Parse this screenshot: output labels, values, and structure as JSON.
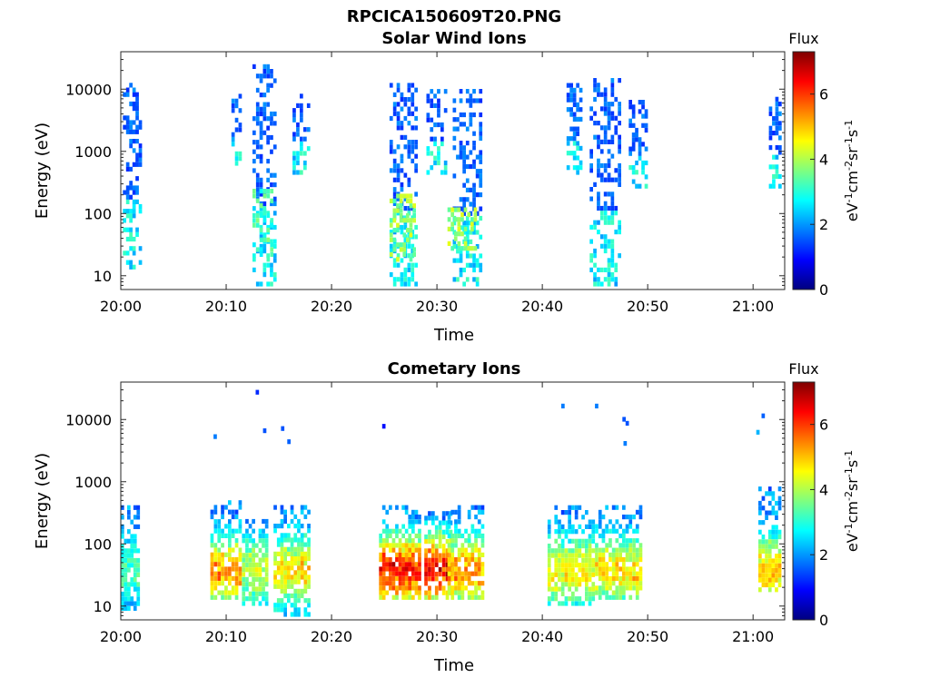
{
  "figure_title": "RPCICA150609T20.PNG",
  "colorscale": [
    "#00007f",
    "#0000ff",
    "#007fff",
    "#00ffff",
    "#7fff7f",
    "#ffff00",
    "#ff7f00",
    "#ff0000",
    "#7f0000"
  ],
  "chart_data": [
    {
      "type": "heatmap",
      "title": "Solar Wind Ions",
      "xlabel": "Time",
      "ylabel": "Energy (eV)",
      "x_ticks": [
        "20:00",
        "20:10",
        "20:20",
        "20:30",
        "20:40",
        "20:50",
        "21:00"
      ],
      "x_range_min": [
        0,
        63
      ],
      "y_scale": "log",
      "y_ticks": [
        "10",
        "100",
        "1000",
        "10000"
      ],
      "ylim": [
        6,
        40000
      ],
      "colorbar": {
        "label": "Flux",
        "unit": "eV^-1 cm^-2 sr^-1 s^-1",
        "ticks": [
          "0",
          "2",
          "4",
          "6"
        ],
        "range": [
          0,
          7.3
        ]
      },
      "bursts": [
        {
          "t0": 0.2,
          "t1": 2.0,
          "e_hi": 15000,
          "e_lo": 15
        },
        {
          "t0": 10.5,
          "t1": 11.5,
          "e_hi": 12000,
          "e_lo": 700
        },
        {
          "t0": 12.5,
          "t1": 14.8,
          "e_hi": 30000,
          "e_lo": 8
        },
        {
          "t0": 16.3,
          "t1": 18.0,
          "e_hi": 12000,
          "e_lo": 500
        },
        {
          "t0": 25.5,
          "t1": 28.2,
          "e_hi": 15000,
          "e_lo": 8
        },
        {
          "t0": 29.0,
          "t1": 31.0,
          "e_hi": 12000,
          "e_lo": 500
        },
        {
          "t0": 31.5,
          "t1": 34.3,
          "e_hi": 12000,
          "e_lo": 8
        },
        {
          "t0": 42.3,
          "t1": 43.8,
          "e_hi": 15000,
          "e_lo": 500
        },
        {
          "t0": 44.5,
          "t1": 47.5,
          "e_hi": 18000,
          "e_lo": 8
        },
        {
          "t0": 48.2,
          "t1": 50.0,
          "e_hi": 8000,
          "e_lo": 300
        },
        {
          "t0": 61.5,
          "t1": 63.0,
          "e_hi": 9000,
          "e_lo": 300
        }
      ],
      "low_energy_features": [
        {
          "t0": 12.5,
          "t1": 14.5,
          "e_hi": 300,
          "e_lo": 20,
          "flux": 3.2
        },
        {
          "t0": 25.5,
          "t1": 28.0,
          "e_hi": 250,
          "e_lo": 20,
          "flux": 3.8
        },
        {
          "t0": 31.0,
          "t1": 33.8,
          "e_hi": 150,
          "e_lo": 30,
          "flux": 3.8
        }
      ]
    },
    {
      "type": "heatmap",
      "title": "Cometary Ions",
      "xlabel": "Time",
      "ylabel": "Energy (eV)",
      "x_ticks": [
        "20:00",
        "20:10",
        "20:20",
        "20:30",
        "20:40",
        "20:50",
        "21:00"
      ],
      "x_range_min": [
        0,
        63
      ],
      "y_scale": "log",
      "y_ticks": [
        "10",
        "100",
        "1000",
        "10000"
      ],
      "ylim": [
        6,
        40000
      ],
      "colorbar": {
        "label": "Flux",
        "unit": "eV^-1 cm^-2 sr^-1 s^-1",
        "ticks": [
          "0",
          "2",
          "4",
          "6"
        ],
        "range": [
          0,
          7.3
        ]
      },
      "bursts": [
        {
          "t0": 0.0,
          "t1": 1.8,
          "e_hi": 500,
          "e_lo": 10,
          "peak": 3.5
        },
        {
          "t0": 8.5,
          "t1": 11.5,
          "e_hi": 600,
          "e_lo": 15,
          "peak": 5.8
        },
        {
          "t0": 11.5,
          "t1": 14.0,
          "e_hi": 300,
          "e_lo": 12,
          "peak": 4.5
        },
        {
          "t0": 14.5,
          "t1": 18.0,
          "e_hi": 500,
          "e_lo": 8,
          "peak": 5.2
        },
        {
          "t0": 24.5,
          "t1": 28.5,
          "e_hi": 500,
          "e_lo": 15,
          "peak": 6.8
        },
        {
          "t0": 28.8,
          "t1": 31.5,
          "e_hi": 400,
          "e_lo": 15,
          "peak": 7.0
        },
        {
          "t0": 31.0,
          "t1": 34.5,
          "e_hi": 500,
          "e_lo": 15,
          "peak": 5.8
        },
        {
          "t0": 40.5,
          "t1": 45.0,
          "e_hi": 500,
          "e_lo": 12,
          "peak": 5.0
        },
        {
          "t0": 45.0,
          "t1": 49.5,
          "e_hi": 500,
          "e_lo": 15,
          "peak": 5.2
        },
        {
          "t0": 60.5,
          "t1": 63.0,
          "e_hi": 1000,
          "e_lo": 20,
          "peak": 5.5
        }
      ],
      "sparse_points": [
        {
          "t": 8.8,
          "e": 5800,
          "flux": 1.8
        },
        {
          "t": 12.8,
          "e": 30000,
          "flux": 1.2
        },
        {
          "t": 13.5,
          "e": 7200,
          "flux": 1.5
        },
        {
          "t": 15.2,
          "e": 7800,
          "flux": 1.5
        },
        {
          "t": 15.8,
          "e": 4800,
          "flux": 1.6
        },
        {
          "t": 24.8,
          "e": 8500,
          "flux": 1.0
        },
        {
          "t": 41.8,
          "e": 18000,
          "flux": 1.8
        },
        {
          "t": 45.0,
          "e": 18000,
          "flux": 1.8
        },
        {
          "t": 47.6,
          "e": 11000,
          "flux": 1.5
        },
        {
          "t": 47.9,
          "e": 9500,
          "flux": 1.5
        },
        {
          "t": 47.7,
          "e": 4500,
          "flux": 1.8
        },
        {
          "t": 60.3,
          "e": 6800,
          "flux": 2.2
        },
        {
          "t": 60.8,
          "e": 12500,
          "flux": 1.6
        }
      ]
    }
  ]
}
